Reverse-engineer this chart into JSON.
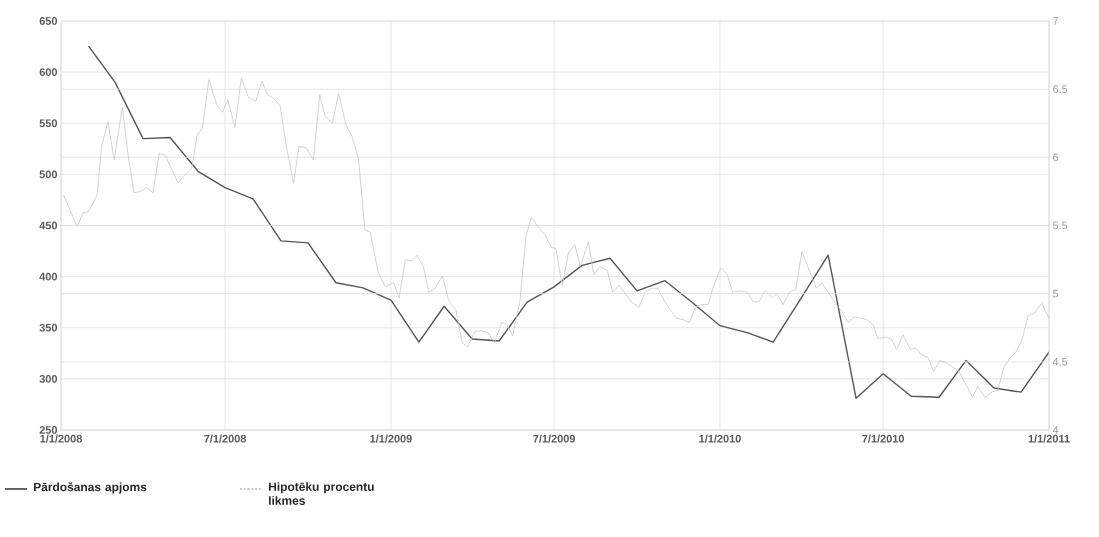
{
  "chart_data": {
    "type": "line",
    "xlim": [
      "2008-01-01",
      "2011-01-01"
    ],
    "xticks": [
      {
        "value": "2008-01-01",
        "label": "1/1/2008"
      },
      {
        "value": "2008-07-01",
        "label": "7/1/2008"
      },
      {
        "value": "2009-01-01",
        "label": "1/1/2009"
      },
      {
        "value": "2009-07-01",
        "label": "7/1/2009"
      },
      {
        "value": "2010-01-01",
        "label": "1/1/2010"
      },
      {
        "value": "2010-07-01",
        "label": "7/1/2010"
      },
      {
        "value": "2011-01-01",
        "label": "1/1/2011"
      }
    ],
    "ylim": [
      250,
      650
    ],
    "yticks": [
      250,
      300,
      350,
      400,
      450,
      500,
      550,
      600,
      650
    ],
    "y2lim": [
      4,
      7
    ],
    "y2ticks": [
      4,
      4.5,
      5,
      5.5,
      6,
      6.5,
      7
    ],
    "grid": true,
    "legend": "bottom",
    "series": [
      {
        "name": "Pārdošanas apjoms",
        "color": "#555555",
        "x": [
          "2008-02-01",
          "2008-03-01",
          "2008-04-01",
          "2008-05-01",
          "2008-06-01",
          "2008-07-01",
          "2008-08-01",
          "2008-09-01",
          "2008-10-01",
          "2008-11-01",
          "2008-12-01",
          "2009-01-01",
          "2009-02-01",
          "2009-03-01",
          "2009-04-01",
          "2009-05-01",
          "2009-06-01",
          "2009-07-01",
          "2009-08-01",
          "2009-09-01",
          "2009-10-01",
          "2009-11-01",
          "2009-12-01",
          "2010-01-01",
          "2010-02-01",
          "2010-03-01",
          "2010-04-01",
          "2010-05-01",
          "2010-06-01",
          "2010-07-01",
          "2010-08-01",
          "2010-09-01",
          "2010-10-01",
          "2010-11-01",
          "2010-12-01",
          "2011-01-01"
        ],
        "values": [
          625,
          590,
          535,
          536,
          503,
          487,
          476,
          435,
          433,
          394,
          389,
          377,
          336,
          371,
          339,
          337,
          375,
          390,
          411,
          418,
          386,
          396,
          375,
          352,
          345,
          336,
          379,
          421,
          281,
          305,
          283,
          282,
          318,
          291,
          287,
          326
        ]
      },
      {
        "name": "Hipotēku procentu likmes",
        "color": "#c8c8c8",
        "axis": "y2",
        "x": [
          "2008-01-04",
          "2008-01-19",
          "2008-01-25",
          "2008-01-31",
          "2008-02-10",
          "2008-02-15",
          "2008-02-22",
          "2008-02-29",
          "2008-03-09",
          "2008-03-16",
          "2008-03-22",
          "2008-03-29",
          "2008-04-05",
          "2008-04-12",
          "2008-04-19",
          "2008-04-26",
          "2008-05-10",
          "2008-05-17",
          "2008-05-25",
          "2008-05-31",
          "2008-06-06",
          "2008-06-13",
          "2008-06-22",
          "2008-06-28",
          "2008-07-04",
          "2008-07-12",
          "2008-07-19",
          "2008-07-27",
          "2008-08-04",
          "2008-08-11",
          "2008-08-17",
          "2008-08-24",
          "2008-08-31",
          "2008-09-07",
          "2008-09-15",
          "2008-09-21",
          "2008-09-29",
          "2008-10-07",
          "2008-10-14",
          "2008-10-20",
          "2008-10-28",
          "2008-11-04",
          "2008-11-12",
          "2008-11-19",
          "2008-11-26",
          "2008-12-03",
          "2008-12-09",
          "2008-12-18",
          "2008-12-26",
          "2009-01-04",
          "2009-01-10",
          "2009-01-17",
          "2009-01-24",
          "2009-01-30",
          "2009-02-06",
          "2009-02-12",
          "2009-02-19",
          "2009-02-27",
          "2009-03-06",
          "2009-03-14",
          "2009-03-21",
          "2009-03-27",
          "2009-04-04",
          "2009-04-12",
          "2009-04-19",
          "2009-04-26",
          "2009-05-04",
          "2009-05-10",
          "2009-05-16",
          "2009-05-24",
          "2009-05-31",
          "2009-06-06",
          "2009-06-13",
          "2009-06-21",
          "2009-06-28",
          "2009-07-03",
          "2009-07-10",
          "2009-07-17",
          "2009-07-24",
          "2009-07-30",
          "2009-08-08",
          "2009-08-14",
          "2009-08-21",
          "2009-08-29",
          "2009-09-04",
          "2009-09-11",
          "2009-09-19",
          "2009-09-25",
          "2009-10-03",
          "2009-10-10",
          "2009-10-18",
          "2009-10-24",
          "2009-10-31",
          "2009-11-08",
          "2009-11-14",
          "2009-11-21",
          "2009-11-28",
          "2009-12-05",
          "2009-12-12",
          "2009-12-19",
          "2009-12-25",
          "2010-01-02",
          "2010-01-09",
          "2010-01-15",
          "2010-01-23",
          "2010-01-31",
          "2010-02-07",
          "2010-02-13",
          "2010-02-20",
          "2010-02-28",
          "2010-03-05",
          "2010-03-12",
          "2010-03-19",
          "2010-03-26",
          "2010-04-02",
          "2010-04-10",
          "2010-04-18",
          "2010-04-24",
          "2010-05-01",
          "2010-05-09",
          "2010-05-16",
          "2010-05-23",
          "2010-05-30",
          "2010-06-06",
          "2010-06-13",
          "2010-06-20",
          "2010-06-25",
          "2010-07-03",
          "2010-07-10",
          "2010-07-16",
          "2010-07-23",
          "2010-07-31",
          "2010-08-06",
          "2010-08-13",
          "2010-08-20",
          "2010-08-26",
          "2010-09-02",
          "2010-09-10",
          "2010-09-16",
          "2010-09-23",
          "2010-10-01",
          "2010-10-08",
          "2010-10-14",
          "2010-10-22",
          "2010-10-30",
          "2010-11-05",
          "2010-11-12",
          "2010-11-19",
          "2010-11-25",
          "2010-12-02",
          "2010-12-09",
          "2010-12-16",
          "2010-12-24",
          "2011-01-01"
        ],
        "values": [
          5.72,
          5.49,
          5.59,
          5.6,
          5.72,
          6.08,
          6.26,
          5.98,
          6.37,
          5.99,
          5.74,
          5.75,
          5.78,
          5.74,
          6.03,
          6.01,
          5.81,
          5.87,
          5.92,
          6.16,
          6.22,
          6.57,
          6.38,
          6.33,
          6.42,
          6.22,
          6.58,
          6.44,
          6.41,
          6.56,
          6.46,
          6.43,
          6.38,
          6.08,
          5.81,
          6.08,
          6.07,
          5.98,
          6.46,
          6.3,
          6.25,
          6.47,
          6.24,
          6.15,
          5.99,
          5.47,
          5.45,
          5.15,
          5.05,
          5.08,
          4.97,
          5.25,
          5.24,
          5.28,
          5.2,
          5.01,
          5.04,
          5.13,
          4.95,
          4.88,
          4.64,
          4.61,
          4.72,
          4.73,
          4.71,
          4.64,
          4.79,
          4.77,
          4.69,
          4.94,
          5.43,
          5.56,
          5.49,
          5.43,
          5.34,
          5.33,
          5.06,
          5.3,
          5.36,
          5.2,
          5.38,
          5.14,
          5.2,
          5.17,
          5.01,
          5.06,
          4.99,
          4.94,
          4.9,
          5.01,
          5.04,
          5.04,
          4.95,
          4.87,
          4.82,
          4.81,
          4.79,
          4.9,
          4.92,
          4.92,
          5.06,
          5.19,
          5.14,
          5.01,
          5.02,
          5.01,
          4.94,
          4.94,
          5.02,
          4.97,
          5.0,
          4.92,
          5.01,
          5.03,
          5.31,
          5.17,
          5.04,
          5.08,
          5.01,
          4.93,
          4.87,
          4.79,
          4.83,
          4.82,
          4.81,
          4.77,
          4.67,
          4.68,
          4.67,
          4.59,
          4.7,
          4.59,
          4.6,
          4.55,
          4.53,
          4.43,
          4.51,
          4.49,
          4.46,
          4.43,
          4.33,
          4.24,
          4.32,
          4.24,
          4.28,
          4.29,
          4.46,
          4.53,
          4.57,
          4.66,
          4.84,
          4.86,
          4.93,
          4.82
        ]
      }
    ]
  }
}
